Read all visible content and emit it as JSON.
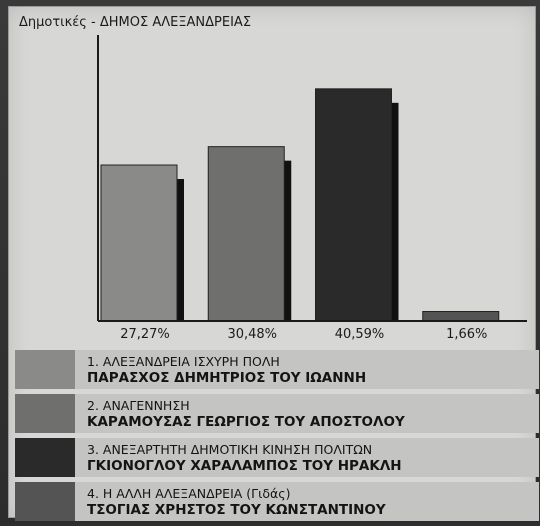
{
  "chart_data": {
    "type": "bar",
    "title": "Δημοτικές - ΔΗΜΟΣ ΑΛΕΞΑΝΔΡΕΙΑΣ",
    "categories": [
      "ΑΛΕΞΑΝΔΡΕΙΑ ΙΣΧΥΡΗ ΠΟΛΗ",
      "ΑΝΑΓΕΝΝΗΣΗ",
      "ΑΝΕΞΑΡΤΗΤΗ ΔΗΜΟΤΙΚΗ ΚΙΝΗΣΗ ΠΟΛΙΤΩΝ",
      "Η ΑΛΛΗ ΑΛΕΞΑΝΔΡΕΙΑ (Γιδάς)"
    ],
    "values": [
      27.27,
      30.48,
      40.59,
      1.66
    ],
    "value_labels": [
      "27,27%",
      "30,48%",
      "40,59%",
      "1,66%"
    ],
    "colors": [
      "#8a8a89",
      "#6f6f6e",
      "#2a2a2a",
      "#545454"
    ],
    "ylim": [
      0,
      50
    ]
  },
  "legend": [
    {
      "party": "1. ΑΛΕΞΑΝΔΡΕΙΑ ΙΣΧΥΡΗ ΠΟΛΗ",
      "leader": "ΠΑΡΑΣΧΟΣ ΔΗΜΗΤΡΙΟΣ ΤΟΥ ΙΩΑΝΝΗ",
      "color": "#8a8a89"
    },
    {
      "party": "2. ΑΝΑΓΕΝΝΗΣΗ",
      "leader": "ΚΑΡΑΜΟΥΣΑΣ ΓΕΩΡΓΙΟΣ ΤΟΥ ΑΠΟΣΤΟΛΟΥ",
      "color": "#6f6f6e"
    },
    {
      "party": "3. ΑΝΕΞΑΡΤΗΤΗ ΔΗΜΟΤΙΚΗ ΚΙΝΗΣΗ ΠΟΛΙΤΩΝ",
      "leader": "ΓΚΙΟΝΟΓΛΟΥ ΧΑΡΑΛΑΜΠΟΣ ΤΟΥ ΗΡΑΚΛΗ",
      "color": "#2a2a2a"
    },
    {
      "party": "4. Η ΑΛΛΗ ΑΛΕΞΑΝΔΡΕΙΑ (Γιδάς)",
      "leader": "ΤΣΟΓΙΑΣ ΧΡΗΣΤΟΣ ΤΟΥ ΚΩΝΣΤΑΝΤΙΝΟΥ",
      "color": "#545454"
    }
  ]
}
